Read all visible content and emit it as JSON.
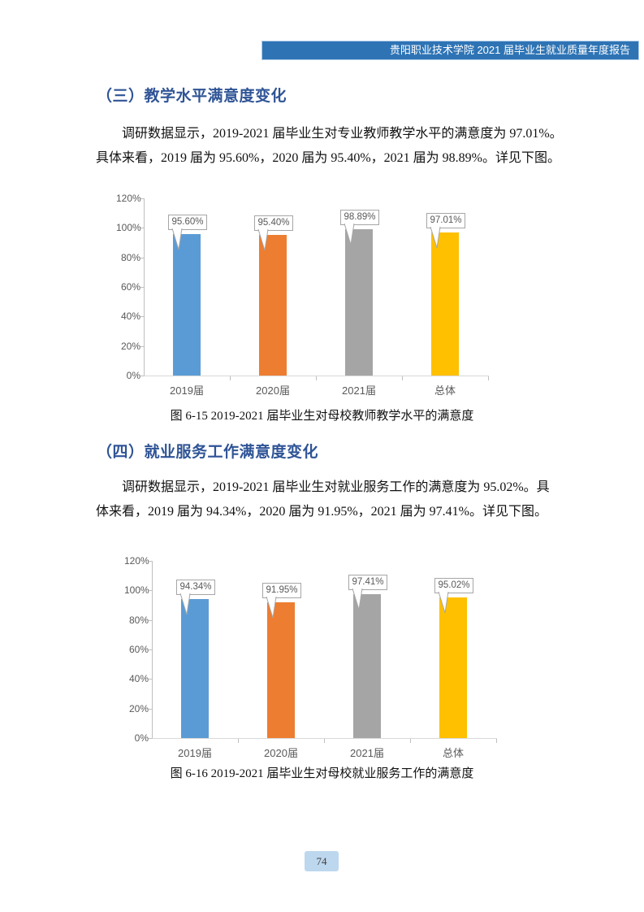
{
  "header": {
    "title": "贵阳职业技术学院 2021 届毕业生就业质量年度报告"
  },
  "sections": [
    {
      "heading": "（三）教学水平满意度变化",
      "paragraph_lines": [
        "调研数据显示，2019-2021 届毕业生对专业教师教学水平的满意度为 97.01%。",
        "具体来看，2019 届为 95.60%，2020 届为 95.40%，2021 届为 98.89%。详见下图。"
      ],
      "caption": "图 6-15 2019-2021 届毕业生对母校教师教学水平的满意度"
    },
    {
      "heading": "（四）就业服务工作满意度变化",
      "paragraph_lines": [
        "调研数据显示，2019-2021 届毕业生对就业服务工作的满意度为 95.02%。具",
        "体来看，2019 届为 94.34%，2020 届为 91.95%，2021 届为 97.41%。详见下图。"
      ],
      "caption": "图 6-16 2019-2021 届毕业生对母校就业服务工作的满意度"
    }
  ],
  "chart_data": [
    {
      "type": "bar",
      "title": "图 6-15 2019-2021 届毕业生对母校教师教学水平的满意度",
      "categories": [
        "2019届",
        "2020届",
        "2021届",
        "总体"
      ],
      "values": [
        95.6,
        95.4,
        98.89,
        97.01
      ],
      "data_labels": [
        "95.60%",
        "95.40%",
        "98.89%",
        "97.01%"
      ],
      "ytick_labels": [
        "0%",
        "20%",
        "40%",
        "60%",
        "80%",
        "100%",
        "120%"
      ],
      "ylim": [
        0,
        120
      ],
      "grid": "off",
      "legend": "none",
      "bar_colors": [
        "#5B9BD5",
        "#ED7D31",
        "#A5A5A5",
        "#FFC000"
      ]
    },
    {
      "type": "bar",
      "title": "图 6-16 2019-2021 届毕业生对母校就业服务工作的满意度",
      "categories": [
        "2019届",
        "2020届",
        "2021届",
        "总体"
      ],
      "values": [
        94.34,
        91.95,
        97.41,
        95.02
      ],
      "data_labels": [
        "94.34%",
        "91.95%",
        "97.41%",
        "95.02%"
      ],
      "ytick_labels": [
        "0%",
        "20%",
        "40%",
        "60%",
        "80%",
        "100%",
        "120%"
      ],
      "ylim": [
        0,
        120
      ],
      "grid": "off",
      "legend": "none",
      "bar_colors": [
        "#5B9BD5",
        "#ED7D31",
        "#A5A5A5",
        "#FFC000"
      ]
    }
  ],
  "page": {
    "number": "74"
  },
  "colors": {
    "header_bar": "#2E74B5",
    "heading_text": "#2F5496",
    "axis_line": "#BFBFBF",
    "axis_text": "#595959",
    "callout_border": "#A6A6A6",
    "page_badge": "#BDD7EE",
    "bar_blue": "#5B9BD5",
    "bar_orange": "#ED7D31",
    "bar_gray": "#A5A5A5",
    "bar_yellow": "#FFC000"
  }
}
